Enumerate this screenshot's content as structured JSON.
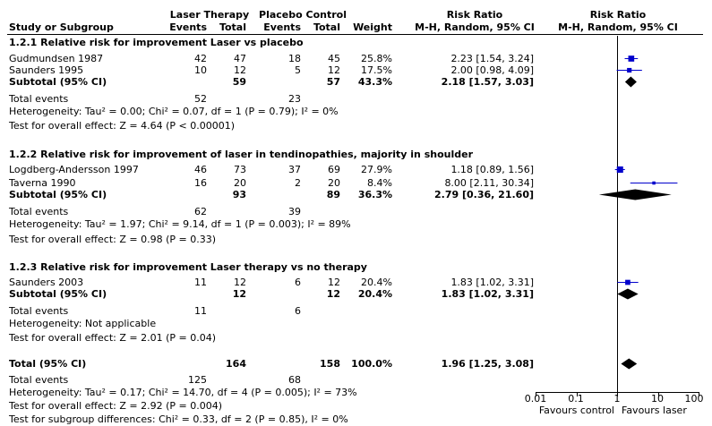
{
  "header": {
    "group1": "Laser Therapy",
    "group2": "Placebo Control",
    "study_col": "Study or Subgroup",
    "events1": "Events",
    "total1": "Total",
    "events2": "Events",
    "total2": "Total",
    "weight": "Weight",
    "rr_title": "Risk Ratio",
    "rr_method": "M-H, Random, 95% CI",
    "plot_title": "Risk Ratio",
    "plot_method": "M-H, Random, 95% CI"
  },
  "subgroups": [
    {
      "title": "1.2.1 Relative risk for improvement Laser vs placebo",
      "studies": [
        {
          "name": "Gudmundsen 1987",
          "e1": "42",
          "n1": "47",
          "e2": "18",
          "n2": "45",
          "weight": "25.8%",
          "ci_text": "2.23 [1.54, 3.24]",
          "rr": 2.23,
          "lo": 1.54,
          "hi": 3.24
        },
        {
          "name": "Saunders 1995",
          "e1": "10",
          "n1": "12",
          "e2": "5",
          "n2": "12",
          "weight": "17.5%",
          "ci_text": "2.00 [0.98, 4.09]",
          "rr": 2.0,
          "lo": 0.98,
          "hi": 4.09
        }
      ],
      "subtotal": {
        "label": "Subtotal (95% CI)",
        "n1": "59",
        "n2": "57",
        "weight": "43.3%",
        "ci_text": "2.18 [1.57, 3.03]",
        "rr": 2.18,
        "lo": 1.57,
        "hi": 3.03
      },
      "total_events": {
        "label": "Total events",
        "e1": "52",
        "e2": "23"
      },
      "heterogeneity": "Heterogeneity: Tau² = 0.00; Chi² = 0.07, df = 1 (P = 0.79); I² = 0%",
      "overall": "Test for overall effect: Z = 4.64 (P < 0.00001)"
    },
    {
      "title": "1.2.2 Relative risk for improvement of laser in tendinopathies, majority in shoulder",
      "studies": [
        {
          "name": "Logdberg-Andersson 1997",
          "e1": "46",
          "n1": "73",
          "e2": "37",
          "n2": "69",
          "weight": "27.9%",
          "ci_text": "1.18 [0.89, 1.56]",
          "rr": 1.18,
          "lo": 0.89,
          "hi": 1.56
        },
        {
          "name": "Taverna 1990",
          "e1": "16",
          "n1": "20",
          "e2": "2",
          "n2": "20",
          "weight": "8.4%",
          "ci_text": "8.00 [2.11, 30.34]",
          "rr": 8.0,
          "lo": 2.11,
          "hi": 30.34
        }
      ],
      "subtotal": {
        "label": "Subtotal (95% CI)",
        "n1": "93",
        "n2": "89",
        "weight": "36.3%",
        "ci_text": "2.79 [0.36, 21.60]",
        "rr": 2.79,
        "lo": 0.36,
        "hi": 21.6
      },
      "total_events": {
        "label": "Total events",
        "e1": "62",
        "e2": "39"
      },
      "heterogeneity": "Heterogeneity: Tau² = 1.97; Chi² = 9.14, df = 1 (P = 0.003); I² = 89%",
      "overall": "Test for overall effect: Z = 0.98 (P = 0.33)"
    },
    {
      "title": "1.2.3 Relative risk for improvement Laser therapy vs no therapy",
      "studies": [
        {
          "name": "Saunders 2003",
          "e1": "11",
          "n1": "12",
          "e2": "6",
          "n2": "12",
          "weight": "20.4%",
          "ci_text": "1.83 [1.02, 3.31]",
          "rr": 1.83,
          "lo": 1.02,
          "hi": 3.31
        }
      ],
      "subtotal": {
        "label": "Subtotal (95% CI)",
        "n1": "12",
        "n2": "12",
        "weight": "20.4%",
        "ci_text": "1.83 [1.02, 3.31]",
        "rr": 1.83,
        "lo": 1.02,
        "hi": 3.31
      },
      "total_events": {
        "label": "Total events",
        "e1": "11",
        "e2": "6"
      },
      "heterogeneity": "Heterogeneity: Not applicable",
      "overall": "Test for overall effect: Z = 2.01 (P = 0.04)"
    }
  ],
  "total": {
    "label": "Total (95% CI)",
    "n1": "164",
    "n2": "158",
    "weight": "100.0%",
    "ci_text": "1.96 [1.25, 3.08]",
    "rr": 1.96,
    "lo": 1.25,
    "hi": 3.08,
    "events_label": "Total events",
    "e1": "125",
    "e2": "68",
    "heterogeneity": "Heterogeneity: Tau² = 0.17; Chi² = 14.70, df = 4 (P = 0.005); I² = 73%",
    "overall": "Test for overall effect: Z = 2.92 (P = 0.004)",
    "subgroup_diff": "Test for subgroup differences: Chi² = 0.33, df = 2 (P = 0.85), I² = 0%"
  },
  "axis": {
    "ticks": [
      "0.01",
      "0.1",
      "1",
      "10",
      "100"
    ],
    "favours_left": "Favours control",
    "favours_right": "Favours laser"
  },
  "chart_data": {
    "type": "forest",
    "scale": "log",
    "xlim": [
      0.01,
      100
    ],
    "xticks": [
      0.01,
      0.1,
      1,
      10,
      100
    ],
    "null_line": 1,
    "marker_color": "#0000cc",
    "diamond_color": "#000000"
  }
}
